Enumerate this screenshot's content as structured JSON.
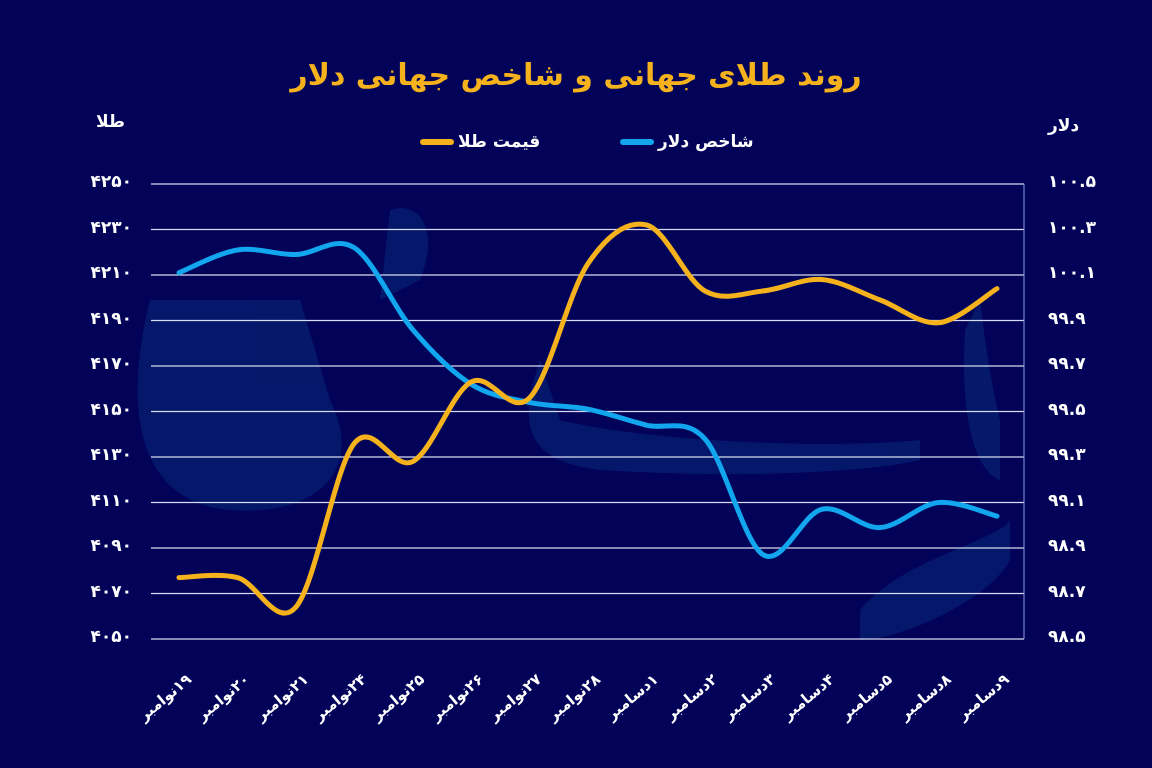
{
  "chart_data": {
    "type": "line",
    "title": "روند طلای جهانی و شاخص جهانی دلار",
    "xlabel": "",
    "ylabel_left": "طلا",
    "ylabel_right": "دلار",
    "categories": [
      "۱۹نوامبر",
      "۲۰نوامبر",
      "۲۱نوامبر",
      "۲۴نوامبر",
      "۲۵نوامبر",
      "۲۶نوامبر",
      "۲۷نوامبر",
      "۲۸نوامبر",
      "۱دسامبر",
      "۲دسامبر",
      "۳دسامبر",
      "۴دسامبر",
      "۵دسامبر",
      "۸دسامبر",
      "۹دسامبر"
    ],
    "series": [
      {
        "name": "قیمت طلا",
        "axis": "left",
        "color": "#f6b21c",
        "values": [
          4077,
          4077,
          4064,
          4136,
          4128,
          4163,
          4156,
          4215,
          4232,
          4203,
          4203,
          4208,
          4199,
          4189,
          4204
        ]
      },
      {
        "name": "شاخص دلار",
        "axis": "right",
        "color": "#11a6ee",
        "values": [
          100.11,
          100.21,
          100.19,
          100.22,
          99.86,
          99.62,
          99.54,
          99.51,
          99.44,
          99.38,
          98.87,
          99.07,
          98.99,
          99.1,
          99.04
        ]
      }
    ],
    "ylim_left": [
      4050,
      4250
    ],
    "ylim_right": [
      98.5,
      100.5
    ],
    "yticks_left": [
      "۴۲۵۰",
      "۴۲۳۰",
      "۴۲۱۰",
      "۴۱۹۰",
      "۴۱۷۰",
      "۴۱۵۰",
      "۴۱۳۰",
      "۴۱۱۰",
      "۴۰۹۰",
      "۴۰۷۰",
      "۴۰۵۰"
    ],
    "yticks_right": [
      "۱۰۰.۵",
      "۱۰۰.۳",
      "۱۰۰.۱",
      "۹۹.۹",
      "۹۹.۷",
      "۹۹.۵",
      "۹۹.۳",
      "۹۹.۱",
      "۹۸.۹",
      "۹۸.۷",
      "۹۸.۵"
    ],
    "grid": true,
    "legend_position": "top"
  },
  "header": {
    "title": "روند طلای جهانی و شاخص جهانی دلار"
  },
  "axes": {
    "left_unit": "طلا",
    "right_unit": "دلار"
  },
  "legend": {
    "gold": "قیمت طلا",
    "dollar": "شاخص دلار"
  },
  "colors": {
    "background": "#010258",
    "gold": "#f6b21c",
    "dollar": "#11a6ee",
    "grid": "#d8dcf0",
    "title": "#f6b21c"
  }
}
